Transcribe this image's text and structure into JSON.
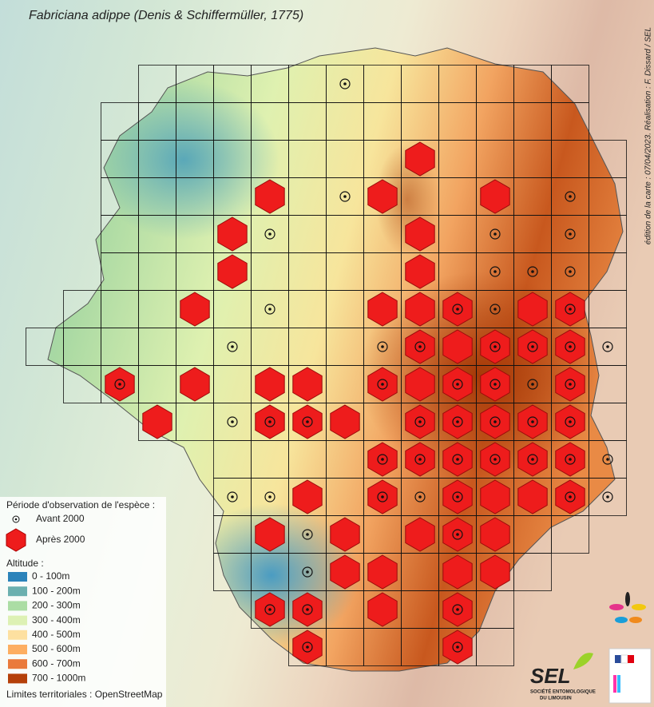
{
  "title": "Fabriciana adippe (Denis & Schiffermüller, 1775)",
  "credit": "édition de la carte : 07/04/2023. Réalisation : F. Dissard / SEL",
  "legend": {
    "period_title": "Période d'observation de l'espèce :",
    "before": "Avant 2000",
    "after": "Après 2000",
    "altitude_title": "Altitude :",
    "altitude_classes": [
      {
        "label": "0 - 100m",
        "color": "#2b83ba"
      },
      {
        "label": "100 - 200m",
        "color": "#6bb0af"
      },
      {
        "label": "200 - 300m",
        "color": "#abdda4"
      },
      {
        "label": "300 - 400m",
        "color": "#ddf1b4"
      },
      {
        "label": "400 - 500m",
        "color": "#fde0a0"
      },
      {
        "label": "500 - 600m",
        "color": "#fdae61"
      },
      {
        "label": "600 - 700m",
        "color": "#ea7a3c"
      },
      {
        "label": "700 - 1000m",
        "color": "#b5400a"
      }
    ],
    "source": "Limites territoriales : OpenStreetMap"
  },
  "logo": {
    "name": "SEL",
    "line1": "SOCIÉTÉ ENTOMOLOGIQUE",
    "line2": "DU LIMOUSIN"
  }
}
